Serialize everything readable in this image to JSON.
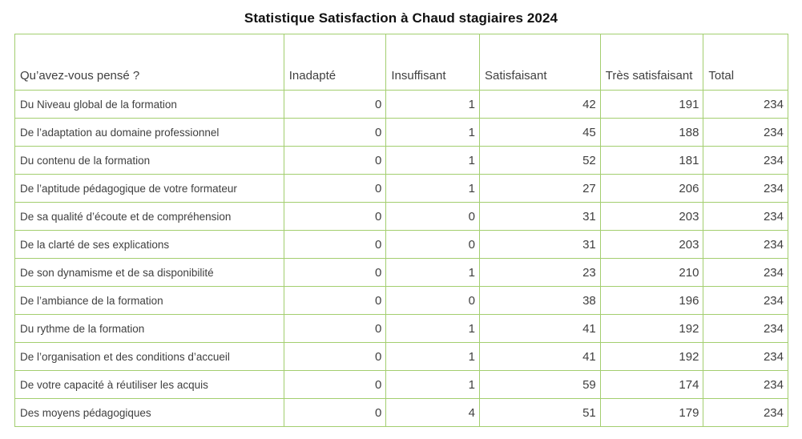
{
  "title": "Statistique Satisfaction à Chaud stagiaires 2024",
  "colors": {
    "table_border": "#a3ce6f",
    "body_text": "#3f3f3f",
    "title_text": "#111111",
    "background": "#ffffff"
  },
  "table": {
    "headers": {
      "question": "Qu’avez-vous pensé ?",
      "inadapte": "Inadapté",
      "insuffisant": "Insuffisant",
      "satisfaisant": "Satisfaisant",
      "tres_satisfaisant": "Très satisfaisant",
      "total": "Total"
    },
    "rows": [
      {
        "label": "Du Niveau global de la formation",
        "values": [
          0,
          1,
          42,
          191,
          234
        ]
      },
      {
        "label": "De l’adaptation au domaine professionnel",
        "values": [
          0,
          1,
          45,
          188,
          234
        ]
      },
      {
        "label": "Du contenu de la formation",
        "values": [
          0,
          1,
          52,
          181,
          234
        ]
      },
      {
        "label": "De l’aptitude pédagogique de votre formateur",
        "values": [
          0,
          1,
          27,
          206,
          234
        ]
      },
      {
        "label": "De sa qualité d’écoute et de compréhension",
        "values": [
          0,
          0,
          31,
          203,
          234
        ]
      },
      {
        "label": "De la clarté de ses explications",
        "values": [
          0,
          0,
          31,
          203,
          234
        ]
      },
      {
        "label": "De son dynamisme et de sa disponibilité",
        "values": [
          0,
          1,
          23,
          210,
          234
        ]
      },
      {
        "label": "De l’ambiance de la formation",
        "values": [
          0,
          0,
          38,
          196,
          234
        ]
      },
      {
        "label": "Du rythme de la formation",
        "values": [
          0,
          1,
          41,
          192,
          234
        ]
      },
      {
        "label": "De l’organisation et des conditions d’accueil",
        "values": [
          0,
          1,
          41,
          192,
          234
        ]
      },
      {
        "label": "De votre capacité à réutiliser les acquis",
        "values": [
          0,
          1,
          59,
          174,
          234
        ]
      },
      {
        "label": "Des moyens pédagogiques",
        "values": [
          0,
          4,
          51,
          179,
          234
        ]
      }
    ]
  }
}
